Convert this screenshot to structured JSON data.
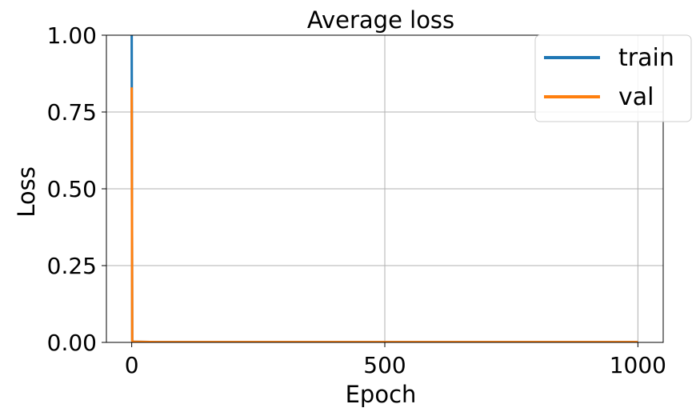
{
  "chart_data": {
    "type": "line",
    "title": "Average loss",
    "xlabel": "Epoch",
    "ylabel": "Loss",
    "xlim": [
      -50,
      1050
    ],
    "ylim": [
      0.0,
      1.0
    ],
    "xticks": [
      0,
      500,
      1000
    ],
    "xtick_labels": [
      "0",
      "500",
      "1000"
    ],
    "yticks": [
      0.0,
      0.25,
      0.5,
      0.75,
      1.0
    ],
    "ytick_labels": [
      "0.00",
      "0.25",
      "0.50",
      "0.75",
      "1.00"
    ],
    "grid": true,
    "legend_position": "top-right",
    "series": [
      {
        "name": "train",
        "color": "#1f77b4",
        "x": [
          0,
          1,
          2,
          5,
          10,
          50,
          100,
          200,
          300,
          400,
          500,
          600,
          700,
          800,
          900,
          1000
        ],
        "y": [
          1.0,
          0.005,
          0.003,
          0.002,
          0.002,
          0.001,
          0.001,
          0.001,
          0.001,
          0.001,
          0.001,
          0.001,
          0.001,
          0.001,
          0.001,
          0.001
        ]
      },
      {
        "name": "val",
        "color": "#ff7f0e",
        "x": [
          0,
          1,
          2,
          5,
          10,
          50,
          100,
          200,
          300,
          400,
          500,
          600,
          700,
          800,
          900,
          1000
        ],
        "y": [
          0.83,
          0.005,
          0.003,
          0.002,
          0.002,
          0.001,
          0.001,
          0.001,
          0.001,
          0.001,
          0.001,
          0.001,
          0.001,
          0.001,
          0.001,
          0.001
        ]
      }
    ]
  }
}
